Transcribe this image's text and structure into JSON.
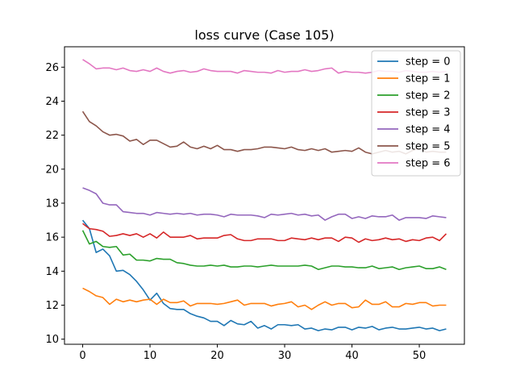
{
  "chart_data": {
    "type": "line",
    "title": "loss curve (Case 105)",
    "xlabel": "",
    "ylabel": "",
    "xlim": [
      -2.7,
      56.7
    ],
    "ylim": [
      9.7,
      27.2
    ],
    "x_ticks": [
      0,
      10,
      20,
      30,
      40,
      50
    ],
    "y_ticks": [
      10,
      12,
      14,
      16,
      18,
      20,
      22,
      24,
      26
    ],
    "grid": false,
    "legend_position": "top-right",
    "x": [
      0,
      1,
      2,
      3,
      4,
      5,
      6,
      7,
      8,
      9,
      10,
      11,
      12,
      13,
      14,
      15,
      16,
      17,
      18,
      19,
      20,
      21,
      22,
      23,
      24,
      25,
      26,
      27,
      28,
      29,
      30,
      31,
      32,
      33,
      34,
      35,
      36,
      37,
      38,
      39,
      40,
      41,
      42,
      43,
      44,
      45,
      46,
      47,
      48,
      49,
      50,
      51,
      52,
      53,
      54
    ],
    "series": [
      {
        "name": "step = 0",
        "color": "#1f77b4",
        "values": [
          17.0,
          16.5,
          15.1,
          15.3,
          14.9,
          14.0,
          14.05,
          13.8,
          13.4,
          12.9,
          12.3,
          12.7,
          12.1,
          11.8,
          11.75,
          11.75,
          11.5,
          11.35,
          11.25,
          11.05,
          11.05,
          10.8,
          11.1,
          10.9,
          10.85,
          11.05,
          10.65,
          10.8,
          10.6,
          10.85,
          10.85,
          10.8,
          10.85,
          10.6,
          10.65,
          10.5,
          10.6,
          10.55,
          10.7,
          10.7,
          10.55,
          10.7,
          10.65,
          10.75,
          10.55,
          10.65,
          10.7,
          10.6,
          10.6,
          10.65,
          10.7,
          10.6,
          10.65,
          10.5,
          10.6
        ]
      },
      {
        "name": "step = 1",
        "color": "#ff7f0e",
        "values": [
          13.0,
          12.8,
          12.55,
          12.45,
          12.05,
          12.35,
          12.2,
          12.3,
          12.2,
          12.3,
          12.35,
          12.05,
          12.35,
          12.15,
          12.15,
          12.25,
          11.95,
          12.1,
          12.1,
          12.1,
          12.05,
          12.1,
          12.2,
          12.3,
          12.0,
          12.1,
          12.1,
          12.1,
          11.95,
          12.05,
          12.1,
          12.2,
          11.9,
          12.0,
          11.75,
          12.0,
          12.2,
          12.0,
          12.1,
          12.1,
          11.85,
          11.9,
          12.3,
          12.05,
          12.05,
          12.2,
          11.9,
          11.9,
          12.1,
          12.05,
          12.15,
          12.15,
          11.95,
          12.0,
          12.0
        ]
      },
      {
        "name": "step = 2",
        "color": "#2ca02c",
        "values": [
          16.4,
          15.6,
          15.75,
          15.45,
          15.4,
          15.45,
          14.95,
          15.0,
          14.65,
          14.65,
          14.6,
          14.75,
          14.7,
          14.7,
          14.5,
          14.45,
          14.35,
          14.3,
          14.3,
          14.35,
          14.3,
          14.35,
          14.25,
          14.25,
          14.3,
          14.3,
          14.25,
          14.3,
          14.35,
          14.3,
          14.3,
          14.3,
          14.3,
          14.35,
          14.3,
          14.1,
          14.2,
          14.3,
          14.3,
          14.25,
          14.25,
          14.2,
          14.2,
          14.3,
          14.15,
          14.2,
          14.25,
          14.1,
          14.2,
          14.25,
          14.3,
          14.15,
          14.15,
          14.25,
          14.1
        ]
      },
      {
        "name": "step = 3",
        "color": "#d62728",
        "values": [
          16.8,
          16.5,
          16.45,
          16.35,
          16.05,
          16.1,
          16.2,
          16.1,
          16.2,
          16.0,
          16.2,
          15.95,
          16.3,
          16.0,
          16.0,
          16.0,
          16.1,
          15.9,
          15.95,
          15.95,
          15.95,
          16.1,
          16.15,
          15.9,
          15.8,
          15.8,
          15.9,
          15.9,
          15.9,
          15.8,
          15.8,
          15.95,
          15.9,
          15.85,
          15.95,
          15.85,
          15.95,
          15.95,
          15.75,
          16.0,
          15.95,
          15.7,
          15.9,
          15.8,
          15.85,
          15.95,
          15.85,
          15.9,
          15.75,
          15.85,
          15.8,
          15.95,
          16.0,
          15.8,
          16.2
        ]
      },
      {
        "name": "step = 4",
        "color": "#9467bd",
        "values": [
          18.9,
          18.75,
          18.55,
          18.0,
          17.9,
          17.9,
          17.5,
          17.45,
          17.4,
          17.4,
          17.3,
          17.45,
          17.4,
          17.35,
          17.4,
          17.35,
          17.4,
          17.3,
          17.35,
          17.35,
          17.3,
          17.2,
          17.35,
          17.3,
          17.3,
          17.3,
          17.25,
          17.15,
          17.35,
          17.3,
          17.35,
          17.4,
          17.3,
          17.35,
          17.25,
          17.3,
          17.0,
          17.2,
          17.35,
          17.35,
          17.1,
          17.2,
          17.1,
          17.25,
          17.2,
          17.2,
          17.3,
          17.0,
          17.15,
          17.15,
          17.15,
          17.1,
          17.25,
          17.2,
          17.15
        ]
      },
      {
        "name": "step = 5",
        "color": "#8c564b",
        "values": [
          23.4,
          22.8,
          22.55,
          22.2,
          22.0,
          22.05,
          21.95,
          21.65,
          21.75,
          21.45,
          21.7,
          21.7,
          21.5,
          21.3,
          21.35,
          21.6,
          21.3,
          21.2,
          21.35,
          21.2,
          21.4,
          21.15,
          21.15,
          21.05,
          21.15,
          21.15,
          21.2,
          21.3,
          21.3,
          21.25,
          21.2,
          21.3,
          21.15,
          21.1,
          21.2,
          21.1,
          21.2,
          21.0,
          21.05,
          21.1,
          21.05,
          21.25,
          21.0,
          20.9,
          21.0,
          21.1,
          21.0,
          21.05,
          20.9,
          21.1,
          21.25,
          21.0,
          21.05,
          21.0,
          21.0
        ]
      },
      {
        "name": "step = 6",
        "color": "#e377c2",
        "values": [
          26.45,
          26.2,
          25.9,
          25.95,
          25.95,
          25.85,
          25.95,
          25.8,
          25.75,
          25.85,
          25.75,
          25.95,
          25.75,
          25.65,
          25.75,
          25.8,
          25.7,
          25.75,
          25.9,
          25.8,
          25.75,
          25.75,
          25.75,
          25.65,
          25.8,
          25.75,
          25.7,
          25.7,
          25.65,
          25.8,
          25.7,
          25.75,
          25.75,
          25.85,
          25.75,
          25.8,
          25.9,
          25.95,
          25.65,
          25.75,
          25.7,
          25.7,
          25.65,
          25.7,
          25.8,
          25.75,
          25.75,
          25.7,
          25.8,
          25.75,
          25.7,
          25.7,
          25.75,
          25.7,
          25.75
        ]
      }
    ]
  }
}
